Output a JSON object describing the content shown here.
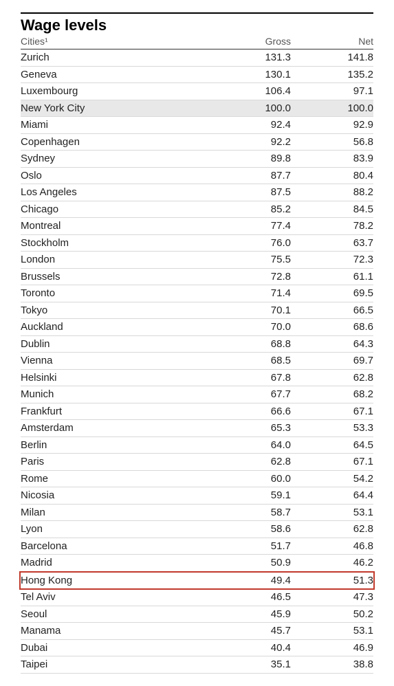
{
  "title": "Wage levels",
  "columns": {
    "city": "Cities¹",
    "gross": "Gross",
    "net": "Net"
  },
  "highlight_border_color": "#c0392b",
  "shaded_bg": "#e8e8e8",
  "font_family": "Arial, Helvetica, sans-serif",
  "title_fontsize": 22,
  "body_fontsize": 15,
  "header_fontsize": 14,
  "rows": [
    {
      "city": "Zurich",
      "gross": "131.3",
      "net": "141.8"
    },
    {
      "city": "Geneva",
      "gross": "130.1",
      "net": "135.2"
    },
    {
      "city": "Luxembourg",
      "gross": "106.4",
      "net": "97.1"
    },
    {
      "city": "New York City",
      "gross": "100.0",
      "net": "100.0",
      "shaded": true
    },
    {
      "city": "Miami",
      "gross": "92.4",
      "net": "92.9"
    },
    {
      "city": "Copenhagen",
      "gross": "92.2",
      "net": "56.8"
    },
    {
      "city": "Sydney",
      "gross": "89.8",
      "net": "83.9"
    },
    {
      "city": "Oslo",
      "gross": "87.7",
      "net": "80.4"
    },
    {
      "city": "Los Angeles",
      "gross": "87.5",
      "net": "88.2"
    },
    {
      "city": "Chicago",
      "gross": "85.2",
      "net": "84.5"
    },
    {
      "city": "Montreal",
      "gross": "77.4",
      "net": "78.2"
    },
    {
      "city": "Stockholm",
      "gross": "76.0",
      "net": "63.7"
    },
    {
      "city": "London",
      "gross": "75.5",
      "net": "72.3"
    },
    {
      "city": "Brussels",
      "gross": "72.8",
      "net": "61.1"
    },
    {
      "city": "Toronto",
      "gross": "71.4",
      "net": "69.5"
    },
    {
      "city": "Tokyo",
      "gross": "70.1",
      "net": "66.5"
    },
    {
      "city": "Auckland",
      "gross": "70.0",
      "net": "68.6"
    },
    {
      "city": "Dublin",
      "gross": "68.8",
      "net": "64.3"
    },
    {
      "city": "Vienna",
      "gross": "68.5",
      "net": "69.7"
    },
    {
      "city": "Helsinki",
      "gross": "67.8",
      "net": "62.8"
    },
    {
      "city": "Munich",
      "gross": "67.7",
      "net": "68.2"
    },
    {
      "city": "Frankfurt",
      "gross": "66.6",
      "net": "67.1"
    },
    {
      "city": "Amsterdam",
      "gross": "65.3",
      "net": "53.3"
    },
    {
      "city": "Berlin",
      "gross": "64.0",
      "net": "64.5"
    },
    {
      "city": "Paris",
      "gross": "62.8",
      "net": "67.1"
    },
    {
      "city": "Rome",
      "gross": "60.0",
      "net": "54.2"
    },
    {
      "city": "Nicosia",
      "gross": "59.1",
      "net": "64.4"
    },
    {
      "city": "Milan",
      "gross": "58.7",
      "net": "53.1"
    },
    {
      "city": "Lyon",
      "gross": "58.6",
      "net": "62.8"
    },
    {
      "city": "Barcelona",
      "gross": "51.7",
      "net": "46.8"
    },
    {
      "city": "Madrid",
      "gross": "50.9",
      "net": "46.2"
    },
    {
      "city": "Hong Kong",
      "gross": "49.4",
      "net": "51.3",
      "highlight": true
    },
    {
      "city": "Tel Aviv",
      "gross": "46.5",
      "net": "47.3"
    },
    {
      "city": "Seoul",
      "gross": "45.9",
      "net": "50.2"
    },
    {
      "city": "Manama",
      "gross": "45.7",
      "net": "53.1"
    },
    {
      "city": "Dubai",
      "gross": "40.4",
      "net": "46.9"
    },
    {
      "city": "Taipei",
      "gross": "35.1",
      "net": "38.8"
    }
  ]
}
